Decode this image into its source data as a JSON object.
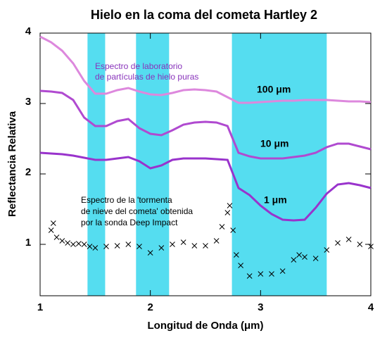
{
  "chart_data": {
    "type": "line",
    "title": "Hielo en la coma del cometa Hartley 2",
    "xlabel": "Longitud de Onda (μm)",
    "ylabel": "Reflectancia Relativa",
    "xlim": [
      1,
      4
    ],
    "ylim": [
      0.27,
      4
    ],
    "xticks": [
      1,
      2,
      3,
      4
    ],
    "yticks": [
      1,
      2,
      3,
      4
    ],
    "bands": [
      [
        1.43,
        1.59
      ],
      [
        1.87,
        2.17
      ],
      [
        2.74,
        3.6
      ]
    ],
    "band_color": "#55ddf0",
    "lab_annotation": [
      "Espectro de laboratorio",
      "de partículas de hielo puras"
    ],
    "lab_annotation_color": "#8833bb",
    "obs_annotation": [
      "Espectro de la 'tormenta",
      "de nieve del cometa' obtenida",
      "por la sonda Deep Impact"
    ],
    "x": [
      1.0,
      1.1,
      1.2,
      1.3,
      1.4,
      1.5,
      1.6,
      1.7,
      1.8,
      1.9,
      2.0,
      2.1,
      2.2,
      2.3,
      2.4,
      2.5,
      2.6,
      2.7,
      2.8,
      2.9,
      3.0,
      3.1,
      3.2,
      3.3,
      3.4,
      3.5,
      3.6,
      3.7,
      3.8,
      3.9,
      4.0
    ],
    "series": [
      {
        "name": "100 μm",
        "color": "#dd88dd",
        "values": [
          3.95,
          3.87,
          3.75,
          3.57,
          3.32,
          3.14,
          3.14,
          3.19,
          3.22,
          3.17,
          3.13,
          3.12,
          3.15,
          3.19,
          3.2,
          3.19,
          3.17,
          3.09,
          3.01,
          3.01,
          3.02,
          3.03,
          3.04,
          3.04,
          3.05,
          3.05,
          3.05,
          3.04,
          3.03,
          3.03,
          3.02
        ]
      },
      {
        "name": "10 μm",
        "color": "#b04ad0",
        "values": [
          3.18,
          3.17,
          3.15,
          3.05,
          2.8,
          2.68,
          2.68,
          2.75,
          2.78,
          2.65,
          2.57,
          2.55,
          2.62,
          2.7,
          2.73,
          2.74,
          2.73,
          2.68,
          2.3,
          2.25,
          2.22,
          2.22,
          2.22,
          2.24,
          2.26,
          2.3,
          2.38,
          2.43,
          2.43,
          2.39,
          2.35
        ]
      },
      {
        "name": "1 μm",
        "color": "#9933cc",
        "values": [
          2.3,
          2.29,
          2.28,
          2.26,
          2.23,
          2.2,
          2.2,
          2.22,
          2.24,
          2.18,
          2.08,
          2.12,
          2.2,
          2.22,
          2.22,
          2.22,
          2.21,
          2.2,
          1.8,
          1.7,
          1.55,
          1.43,
          1.35,
          1.34,
          1.35,
          1.52,
          1.72,
          1.85,
          1.87,
          1.84,
          1.8
        ]
      }
    ],
    "observed": {
      "color": "#000000",
      "x": [
        1.1,
        1.12,
        1.15,
        1.2,
        1.25,
        1.3,
        1.35,
        1.4,
        1.45,
        1.5,
        1.6,
        1.7,
        1.8,
        1.9,
        2.0,
        2.1,
        2.2,
        2.3,
        2.4,
        2.5,
        2.6,
        2.65,
        2.7,
        2.72,
        2.75,
        2.78,
        2.82,
        2.9,
        3.0,
        3.1,
        3.2,
        3.3,
        3.35,
        3.4,
        3.5,
        3.6,
        3.7,
        3.8,
        3.9,
        4.0
      ],
      "values": [
        1.2,
        1.3,
        1.1,
        1.05,
        1.02,
        1.0,
        1.01,
        1.0,
        0.97,
        0.95,
        0.97,
        0.98,
        1.0,
        0.97,
        0.88,
        0.95,
        1.0,
        1.03,
        0.98,
        0.98,
        1.05,
        1.25,
        1.45,
        1.55,
        1.2,
        0.85,
        0.7,
        0.55,
        0.58,
        0.58,
        0.62,
        0.78,
        0.85,
        0.82,
        0.8,
        0.92,
        1.02,
        1.07,
        1.0,
        0.97
      ]
    }
  }
}
